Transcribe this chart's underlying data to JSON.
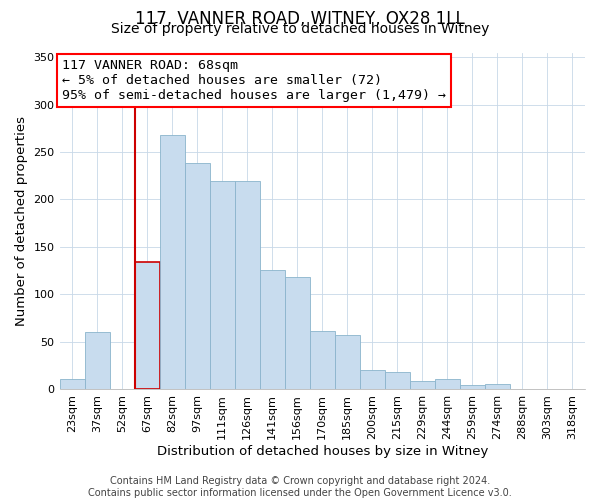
{
  "title": "117, VANNER ROAD, WITNEY, OX28 1LL",
  "subtitle": "Size of property relative to detached houses in Witney",
  "xlabel": "Distribution of detached houses by size in Witney",
  "ylabel": "Number of detached properties",
  "footer_line1": "Contains HM Land Registry data © Crown copyright and database right 2024.",
  "footer_line2": "Contains public sector information licensed under the Open Government Licence v3.0.",
  "annotation_line1": "117 VANNER ROAD: 68sqm",
  "annotation_line2": "← 5% of detached houses are smaller (72)",
  "annotation_line3": "95% of semi-detached houses are larger (1,479) →",
  "bar_labels": [
    "23sqm",
    "37sqm",
    "52sqm",
    "67sqm",
    "82sqm",
    "97sqm",
    "111sqm",
    "126sqm",
    "141sqm",
    "156sqm",
    "170sqm",
    "185sqm",
    "200sqm",
    "215sqm",
    "229sqm",
    "244sqm",
    "259sqm",
    "274sqm",
    "288sqm",
    "303sqm",
    "318sqm"
  ],
  "bar_values": [
    11,
    60,
    0,
    134,
    268,
    238,
    219,
    219,
    125,
    118,
    61,
    57,
    20,
    18,
    8,
    10,
    4,
    5,
    0,
    0,
    0
  ],
  "bar_color": "#c8dcee",
  "bar_edge_color": "#8ab4cc",
  "highlight_bar_index": 3,
  "highlight_color": "#cc0000",
  "ylim": [
    0,
    355
  ],
  "yticks": [
    0,
    50,
    100,
    150,
    200,
    250,
    300,
    350
  ],
  "title_fontsize": 12,
  "subtitle_fontsize": 10,
  "axis_label_fontsize": 9.5,
  "tick_fontsize": 8,
  "annotation_fontsize": 9.5,
  "footer_fontsize": 7
}
